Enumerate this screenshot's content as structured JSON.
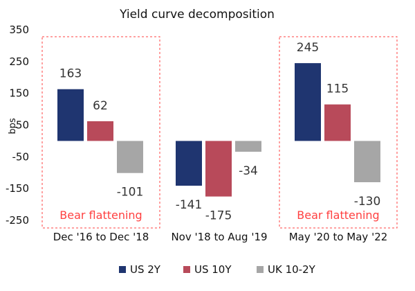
{
  "chart_data": {
    "type": "bar",
    "title": "Yield curve decomposition",
    "ylabel": "bps",
    "xlabel": "",
    "ylim": [
      -250,
      350
    ],
    "yticks": [
      "350",
      "250",
      "150",
      "50",
      "-50",
      "-150",
      "-250"
    ],
    "ytick_values": [
      350,
      250,
      150,
      50,
      -50,
      -150,
      -250
    ],
    "grid": false,
    "legend_position": "bottom",
    "categories": [
      "Dec '16 to Dec '18",
      "Nov '18 to Aug '19",
      "May '20 to May '22"
    ],
    "series": [
      {
        "name": "US 2Y",
        "color": "#1f3570",
        "values": [
          163,
          -141,
          245
        ],
        "labels": [
          "163",
          "-141",
          "245"
        ]
      },
      {
        "name": "US 10Y",
        "color": "#b84a5a",
        "values": [
          62,
          -175,
          115
        ],
        "labels": [
          "62",
          "-175",
          "115"
        ]
      },
      {
        "name": "UK 10-2Y",
        "color": "#a6a6a6",
        "values": [
          -101,
          -34,
          -130
        ],
        "labels": [
          "-101",
          "-34",
          "-130"
        ]
      }
    ],
    "highlights": [
      {
        "category_index": 0,
        "label": "Bear flattening",
        "color": "#ff4040"
      },
      {
        "category_index": 2,
        "label": "Bear flattening",
        "color": "#ff4040"
      }
    ]
  }
}
